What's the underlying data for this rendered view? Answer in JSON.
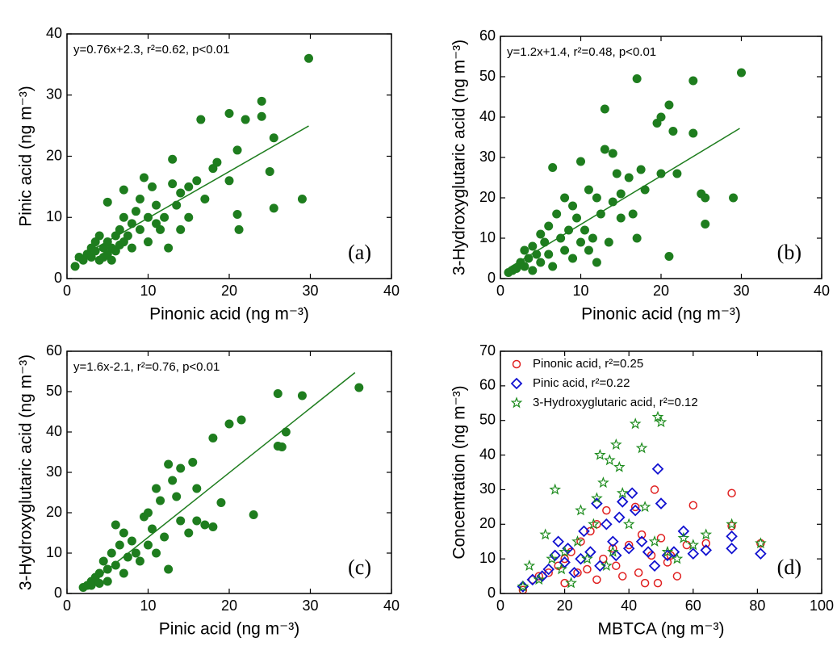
{
  "chart_data": [
    {
      "type": "scatter",
      "panel_label": "(a)",
      "x_label": "Pinonic acid (ng m⁻³)",
      "y_label": "Pinic acid (ng m⁻³)",
      "annotation": "y=0.76x+2.3, r²=0.62, p<0.01",
      "xlim": [
        0,
        40
      ],
      "ylim": [
        0,
        40
      ],
      "xticks": [
        0,
        10,
        20,
        30,
        40
      ],
      "yticks": [
        0,
        10,
        20,
        30,
        40
      ],
      "series": [
        {
          "color": "#1e7d1e",
          "marker": "filled-circle",
          "x": [
            1,
            1.5,
            2,
            2.5,
            3,
            3,
            3.5,
            3.5,
            4,
            4,
            4.5,
            4.5,
            5,
            5,
            5,
            5.5,
            5.5,
            6,
            6,
            6.5,
            6.5,
            7,
            7,
            7,
            7.5,
            8,
            8,
            8.5,
            9,
            9,
            9.5,
            10,
            10,
            10.5,
            11,
            11,
            11.5,
            12,
            12.5,
            13,
            13,
            13.5,
            14,
            14,
            15,
            15,
            16,
            16.5,
            17,
            18,
            18.5,
            20,
            20,
            21,
            21,
            21.2,
            22,
            24,
            24,
            25,
            25.5,
            25.5,
            29,
            29.8
          ],
          "y": [
            2,
            3.5,
            3,
            4,
            5,
            3.5,
            6,
            4.5,
            7,
            3,
            5,
            3.5,
            12.5,
            4,
            6,
            3,
            5,
            7,
            4.5,
            8,
            5.5,
            10,
            6,
            14.5,
            7,
            9,
            5,
            11,
            13,
            8,
            16.5,
            10,
            6,
            15,
            12,
            9,
            8,
            10,
            5,
            15.5,
            19.5,
            12,
            14,
            8,
            15,
            10,
            16,
            26,
            13,
            18,
            19,
            27,
            16,
            10.5,
            21,
            8,
            26,
            29,
            26.5,
            17.5,
            23,
            11.5,
            13,
            36
          ]
        }
      ],
      "fit": {
        "color": "#1e7d1e",
        "x": [
          1,
          29.8
        ],
        "y": [
          3.06,
          24.95
        ]
      }
    },
    {
      "type": "scatter",
      "panel_label": "(b)",
      "x_label": "Pinonic acid (ng m⁻³)",
      "y_label": "3-Hydroxyglutaric acid (ng m⁻³)",
      "annotation": "y=1.2x+1.4, r²=0.48, p<0.01",
      "xlim": [
        0,
        40
      ],
      "ylim": [
        0,
        60
      ],
      "xticks": [
        0,
        10,
        20,
        30,
        40
      ],
      "yticks": [
        0,
        10,
        20,
        30,
        40,
        50,
        60
      ],
      "series": [
        {
          "color": "#1e7d1e",
          "marker": "filled-circle",
          "x": [
            1,
            1.5,
            2,
            2.5,
            3,
            3,
            3.5,
            4,
            4,
            4.5,
            5,
            5,
            5.5,
            6,
            6,
            6.5,
            6.5,
            7,
            7.5,
            8,
            8,
            8.5,
            9,
            9,
            9.5,
            10,
            10,
            10.5,
            11,
            11,
            11.5,
            12,
            12,
            12.5,
            13,
            13,
            13.5,
            14,
            14,
            14.5,
            15,
            15,
            16,
            16.5,
            17,
            17,
            17.5,
            18,
            19.5,
            20,
            20,
            21,
            21,
            21.5,
            22,
            24,
            24,
            25,
            25.5,
            25.5,
            29,
            30
          ],
          "y": [
            1.5,
            2,
            2.5,
            4,
            7,
            3,
            5,
            8,
            2,
            6,
            11,
            4,
            9,
            13,
            6,
            27.5,
            3,
            16,
            10,
            20,
            7,
            12,
            18,
            5,
            15,
            29,
            9,
            12,
            22,
            7,
            10,
            20,
            4,
            16,
            42,
            32,
            9,
            31,
            19,
            26,
            15,
            21,
            25,
            16,
            49.5,
            10,
            27,
            22,
            38.5,
            40,
            26,
            43,
            5.5,
            36.5,
            26,
            49,
            36,
            21,
            20,
            13.5,
            20,
            51
          ]
        }
      ],
      "fit": {
        "color": "#1e7d1e",
        "x": [
          1,
          29.8
        ],
        "y": [
          2.6,
          37.2
        ]
      }
    },
    {
      "type": "scatter",
      "panel_label": "(c)",
      "x_label": "Pinic acid (ng m⁻³)",
      "y_label": "3-Hydroxyglutaric acid (ng m⁻³)",
      "annotation": "y=1.6x-2.1, r²=0.76, p<0.01",
      "xlim": [
        0,
        40
      ],
      "ylim": [
        0,
        60
      ],
      "xticks": [
        0,
        10,
        20,
        30,
        40
      ],
      "yticks": [
        0,
        10,
        20,
        30,
        40,
        50,
        60
      ],
      "series": [
        {
          "color": "#1e7d1e",
          "marker": "filled-circle",
          "x": [
            2,
            2.5,
            3,
            3,
            3.5,
            4,
            4,
            4.5,
            5,
            5,
            5.5,
            6,
            6,
            6.5,
            7,
            7,
            7.5,
            8,
            8.5,
            9,
            9.5,
            10,
            10,
            10.5,
            11,
            11,
            11.5,
            12,
            12.5,
            12.5,
            13,
            13.5,
            14,
            14,
            15,
            15.5,
            16,
            16,
            17,
            18,
            18,
            19,
            20,
            21.5,
            23,
            26,
            26,
            26.5,
            27,
            29,
            36
          ],
          "y": [
            1.5,
            2,
            3,
            2,
            4,
            5,
            2.5,
            8,
            6,
            3,
            10,
            17,
            7,
            12,
            15,
            5,
            9,
            13,
            10,
            8,
            19,
            20,
            12,
            16,
            26,
            10,
            23,
            14,
            32,
            6,
            28,
            24,
            31,
            18,
            15,
            32.5,
            26,
            18,
            17,
            38.5,
            16.5,
            22.5,
            42,
            43,
            19.5,
            49.5,
            36.5,
            36.3,
            40,
            49,
            51
          ]
        }
      ],
      "fit": {
        "color": "#1e7d1e",
        "x": [
          2.3,
          35.5
        ],
        "y": [
          1.6,
          54.7
        ]
      }
    },
    {
      "type": "scatter",
      "panel_label": "(d)",
      "x_label": "MBTCA (ng m⁻³)",
      "y_label": "Concentration (ng m⁻³)",
      "xlim": [
        0,
        100
      ],
      "ylim": [
        0,
        70
      ],
      "xticks": [
        0,
        20,
        40,
        60,
        80,
        100
      ],
      "yticks": [
        0,
        10,
        20,
        30,
        40,
        50,
        60,
        70
      ],
      "series": [
        {
          "name": "Pinonic acid, r²=0.25",
          "color": "#e02020",
          "marker": "open-circle",
          "x": [
            7,
            10,
            12,
            15,
            18,
            20,
            20,
            22,
            24,
            25,
            27,
            28,
            30,
            30,
            32,
            33,
            35,
            36,
            38,
            40,
            42,
            43,
            44,
            45,
            47,
            48,
            49,
            50,
            52,
            53,
            55,
            58,
            60,
            64,
            72,
            72,
            81
          ],
          "y": [
            1,
            4,
            5,
            6,
            8,
            10,
            3,
            12,
            6,
            15,
            7,
            18,
            20,
            4,
            10,
            24,
            13,
            8,
            5,
            14,
            25,
            6,
            17,
            3,
            11,
            30,
            3,
            16,
            9,
            11,
            5,
            14,
            25.5,
            14.5,
            29,
            19.5,
            14.5
          ]
        },
        {
          "name": "Pinic acid, r²=0.22",
          "color": "#1010d0",
          "marker": "diamond",
          "x": [
            7,
            10,
            13,
            15,
            17,
            18,
            20,
            21,
            23,
            25,
            26,
            28,
            30,
            31,
            33,
            35,
            36,
            37,
            38,
            40,
            41,
            42,
            44,
            46,
            48,
            49,
            50,
            52,
            54,
            57,
            60,
            64,
            72,
            72,
            81
          ],
          "y": [
            2,
            4,
            5,
            7,
            11,
            15,
            9,
            13,
            6,
            10,
            18,
            12,
            26,
            8,
            20,
            15,
            11,
            22,
            26.5,
            13,
            29,
            24,
            15,
            12,
            8,
            36,
            26,
            11,
            12,
            18,
            11.5,
            12.5,
            16.5,
            13,
            11.5
          ]
        },
        {
          "name": "3-Hydroxyglutaric acid, r²=0.12",
          "color": "#1e8c1e",
          "marker": "star",
          "x": [
            7,
            9,
            12,
            14,
            16,
            17,
            19,
            20,
            22,
            24,
            25,
            27,
            29,
            30,
            31,
            32,
            33,
            34,
            35,
            36,
            37,
            38,
            40,
            42,
            44,
            45,
            48,
            49,
            50,
            52,
            55,
            57,
            60,
            64,
            72,
            81
          ],
          "y": [
            2,
            8,
            4,
            17,
            10,
            30,
            7,
            12,
            3,
            15,
            24,
            10,
            20,
            27.5,
            40,
            32,
            8,
            38.5,
            12,
            43,
            36.5,
            29,
            20,
            49,
            42,
            25,
            15,
            51,
            49.5,
            12,
            10,
            16,
            14,
            17,
            20,
            14.5
          ]
        }
      ]
    }
  ]
}
